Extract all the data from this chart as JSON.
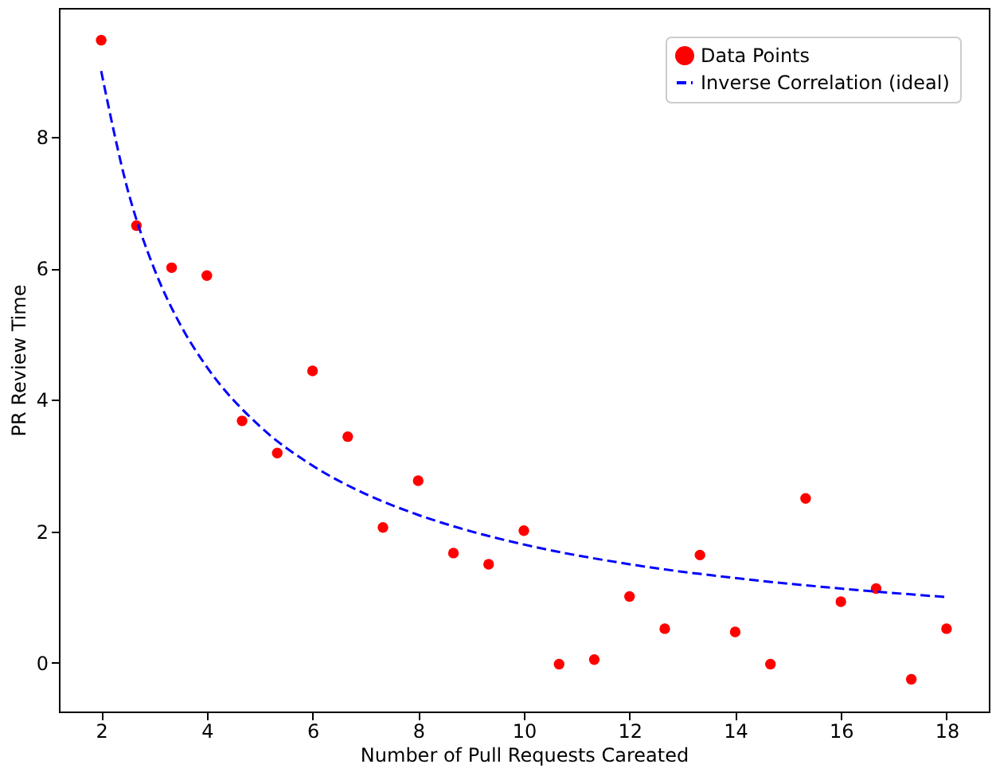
{
  "chart_data": {
    "type": "scatter",
    "xlabel": "Number of Pull Requests Careated",
    "ylabel": "PR Review Time",
    "xlim": [
      1.2,
      18.8
    ],
    "ylim": [
      -0.74,
      9.96
    ],
    "xticks": [
      2,
      4,
      6,
      8,
      10,
      12,
      14,
      16,
      18
    ],
    "yticks": [
      0,
      2,
      4,
      6,
      8
    ],
    "legend": "top right",
    "grid": false,
    "series": [
      {
        "name": "Data Points",
        "marker": "circle",
        "color": "#ff0000",
        "x": [
          2,
          2.667,
          3.333,
          4,
          4.667,
          5.333,
          6,
          6.667,
          7.333,
          8,
          8.667,
          9.333,
          10,
          10.667,
          11.333,
          12,
          12.667,
          13.333,
          14,
          14.667,
          15.333,
          16,
          16.667,
          17.333,
          18
        ],
        "values": [
          9.47,
          6.65,
          6.01,
          5.89,
          3.68,
          3.19,
          4.44,
          3.44,
          2.06,
          2.77,
          1.67,
          1.5,
          2.01,
          -0.02,
          0.05,
          1.01,
          0.52,
          1.64,
          0.47,
          -0.02,
          2.5,
          0.93,
          1.13,
          -0.25,
          0.52
        ]
      },
      {
        "name": "Inverse Correlation (ideal)",
        "type": "line",
        "line_style": "dashed",
        "color": "#0000ff",
        "x": [
          2,
          2.5,
          3,
          3.5,
          4,
          5,
          6,
          7,
          8,
          9,
          10,
          12,
          14,
          16,
          18
        ],
        "values": [
          9,
          7.2,
          6,
          5.14,
          4.5,
          3.6,
          3,
          2.57,
          2.25,
          2,
          1.8,
          1.5,
          1.29,
          1.13,
          1
        ]
      }
    ]
  }
}
